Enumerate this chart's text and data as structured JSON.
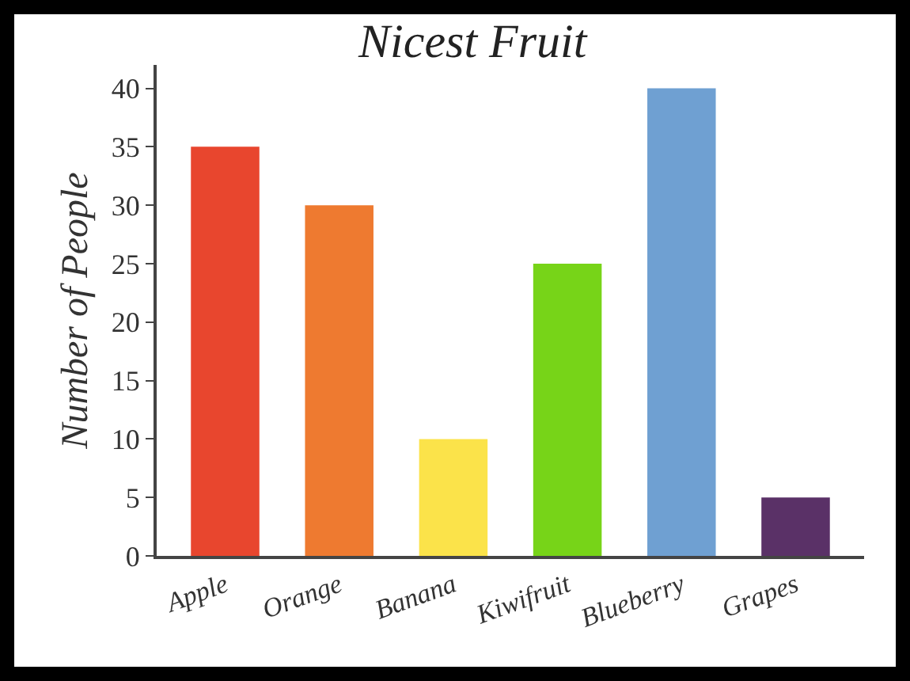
{
  "chart_data": {
    "type": "bar",
    "title": "Nicest Fruit",
    "ylabel": "Number of People",
    "categories": [
      "Apple",
      "Orange",
      "Banana",
      "Kiwifruit",
      "Blueberry",
      "Grapes"
    ],
    "values": [
      35,
      30,
      10,
      25,
      40,
      5
    ],
    "colors": [
      "#e8462e",
      "#ee7a30",
      "#fbe34a",
      "#77d418",
      "#6fa0d2",
      "#5a3167"
    ],
    "ylim": [
      0,
      42
    ],
    "yticks": [
      0,
      5,
      10,
      15,
      20,
      25,
      30,
      35,
      40
    ],
    "grid": false,
    "legend": false
  }
}
